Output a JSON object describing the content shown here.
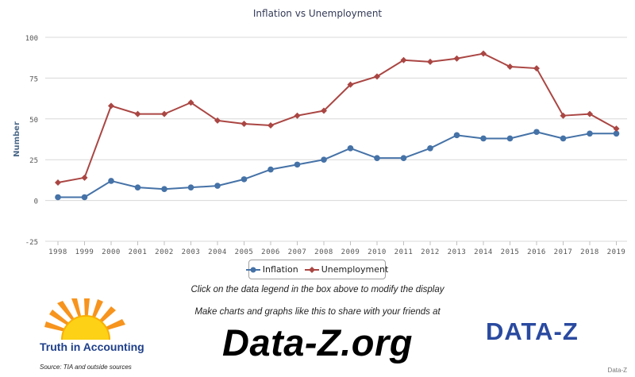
{
  "chart_data": {
    "type": "line",
    "title": "Inflation vs Unemployment",
    "xlabel": "",
    "ylabel": "Number",
    "ylim": [
      -25,
      100
    ],
    "yticks": [
      -25,
      0,
      25,
      50,
      75,
      100
    ],
    "grid": true,
    "legend_position": "bottom-center",
    "categories": [
      "1998",
      "1999",
      "2000",
      "2001",
      "2002",
      "2003",
      "2004",
      "2005",
      "2006",
      "2007",
      "2008",
      "2009",
      "2010",
      "2011",
      "2012",
      "2013",
      "2014",
      "2015",
      "2016",
      "2017",
      "2018",
      "2019"
    ],
    "series": [
      {
        "name": "Inflation",
        "color": "#4572a7",
        "marker": "circle",
        "values": [
          2,
          2,
          12,
          8,
          7,
          8,
          9,
          13,
          19,
          22,
          25,
          32,
          26,
          26,
          32,
          40,
          38,
          38,
          42,
          38,
          41,
          41
        ]
      },
      {
        "name": "Unemployment",
        "color": "#aa4643",
        "marker": "diamond",
        "values": [
          11,
          14,
          58,
          53,
          53,
          60,
          49,
          47,
          46,
          52,
          55,
          71,
          76,
          86,
          85,
          87,
          90,
          82,
          81,
          52,
          53,
          44
        ]
      }
    ]
  },
  "notes": {
    "click": "Click on the data legend in the box above to modify the display",
    "make": "Make charts and graphs like this to share with your friends at",
    "url": "Data-Z.org"
  },
  "branding": {
    "tia": "Truth in Accounting",
    "source": "Source: TIA and outside sources",
    "dz_logo": "DATA-Z",
    "dz_small": "Data-Z"
  }
}
